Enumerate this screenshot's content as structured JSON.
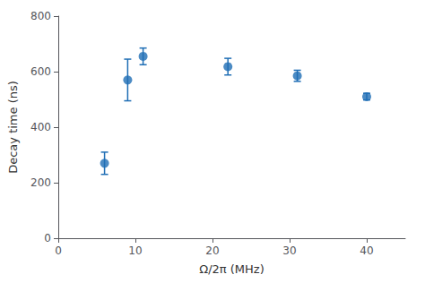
{
  "chart_data": {
    "type": "scatter",
    "x": [
      6,
      9,
      11,
      22,
      31,
      40
    ],
    "values": [
      270,
      570,
      655,
      618,
      585,
      510
    ],
    "yerr": [
      40,
      75,
      30,
      30,
      20,
      12
    ],
    "xlabel": "Ω/2π (MHz)",
    "ylabel": "Decay time (ns)",
    "xlim": [
      0,
      45
    ],
    "ylim": [
      0,
      800
    ],
    "xticks": [
      0,
      10,
      20,
      30,
      40
    ],
    "yticks": [
      0,
      200,
      400,
      600,
      800
    ],
    "color": "#1f6eb5",
    "marker": "circle",
    "grid": false
  }
}
